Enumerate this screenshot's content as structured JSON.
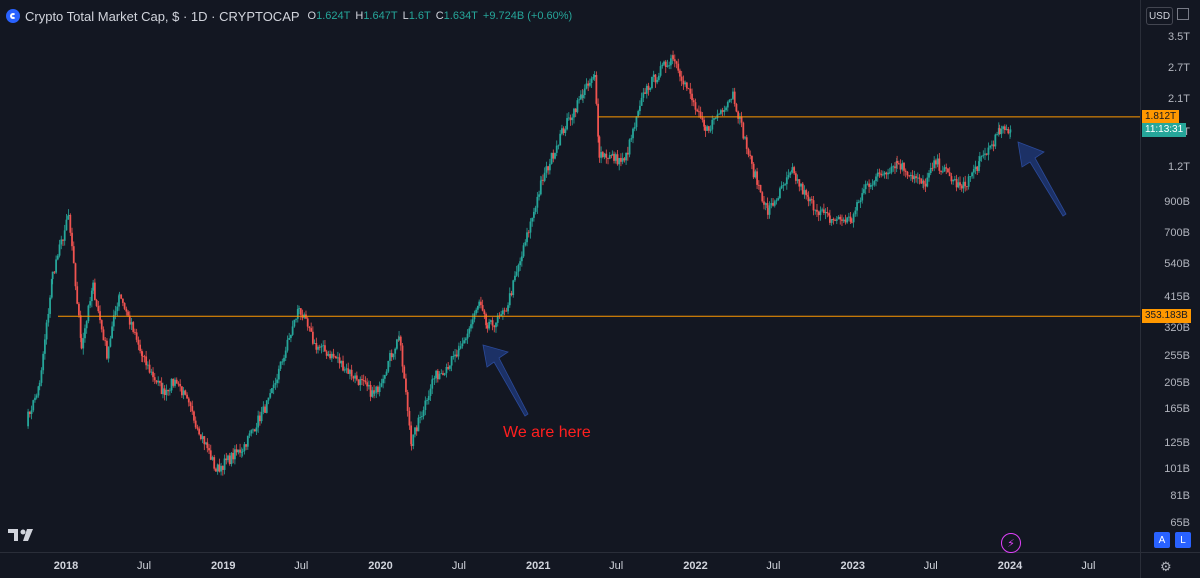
{
  "legend": {
    "symbol": "Crypto Total Market Cap, $ · 1D · CRYPTOCAP",
    "o_label": "O",
    "o_value": "1.624T",
    "h_label": "H",
    "h_value": "1.647T",
    "l_label": "L",
    "l_value": "1.6T",
    "c_label": "C",
    "c_value": "1.634T",
    "change": "+9.724B (+0.60%)"
  },
  "currency": "USD",
  "annotation": "We are here",
  "price_tags": {
    "upper_level": "1.812T",
    "countdown": "11:13:31",
    "lower_level": "353.183B"
  },
  "buttons": {
    "auto": "A",
    "log": "L"
  },
  "colors": {
    "up": "#26a69a",
    "down": "#ef5350",
    "level_line": "#ff9800",
    "arrow": "#1c3166",
    "annotation": "#ff1f1f",
    "background": "#131722"
  },
  "chart_data": {
    "type": "candlestick",
    "title": "Crypto Total Market Cap, $ · 1D · CRYPTOCAP",
    "scale": "log",
    "y_ticks": [
      "3.5T",
      "2.7T",
      "2.1T",
      "1.6T",
      "1.2T",
      "900B",
      "700B",
      "540B",
      "415B",
      "320B",
      "255B",
      "205B",
      "165B",
      "125B",
      "101B",
      "81B",
      "65B"
    ],
    "x_ticks": [
      "2018",
      "Jul",
      "2019",
      "Jul",
      "2020",
      "Jul",
      "2021",
      "Jul",
      "2022",
      "Jul",
      "2023",
      "Jul",
      "2024",
      "Jul"
    ],
    "ylim": [
      "62B",
      "4.2T"
    ],
    "horizontal_levels": [
      "1.812T",
      "353.183B"
    ],
    "series": [
      {
        "values": [
          [
            "2017-10-01",
            "150B"
          ],
          [
            "2017-11-01",
            "200B"
          ],
          [
            "2017-12-01",
            "500B"
          ],
          [
            "2018-01-07",
            "800B"
          ],
          [
            "2018-02-06",
            "280B"
          ],
          [
            "2018-03-05",
            "450B"
          ],
          [
            "2018-04-06",
            "260B"
          ],
          [
            "2018-05-05",
            "430B"
          ],
          [
            "2018-06-28",
            "250B"
          ],
          [
            "2018-08-14",
            "190B"
          ],
          [
            "2018-09-15",
            "210B"
          ],
          [
            "2018-11-25",
            "120B"
          ],
          [
            "2018-12-15",
            "100B"
          ],
          [
            "2019-02-15",
            "120B"
          ],
          [
            "2019-04-20",
            "180B"
          ],
          [
            "2019-06-26",
            "380B"
          ],
          [
            "2019-08-01",
            "280B"
          ],
          [
            "2019-09-20",
            "250B"
          ],
          [
            "2019-10-26",
            "220B"
          ],
          [
            "2019-12-18",
            "185B"
          ],
          [
            "2020-02-13",
            "300B"
          ],
          [
            "2020-03-13",
            "125B"
          ],
          [
            "2020-05-01",
            "210B"
          ],
          [
            "2020-07-01",
            "260B"
          ],
          [
            "2020-08-17",
            "390B"
          ],
          [
            "2020-09-05",
            "320B"
          ],
          [
            "2020-10-15",
            "360B"
          ],
          [
            "2020-11-24",
            "580B"
          ],
          [
            "2021-01-08",
            "1.05T"
          ],
          [
            "2021-02-21",
            "1.55T"
          ],
          [
            "2021-04-15",
            "2.2T"
          ],
          [
            "2021-05-12",
            "2.5T"
          ],
          [
            "2021-05-23",
            "1.35T"
          ],
          [
            "2021-06-22",
            "1.3T"
          ],
          [
            "2021-07-20",
            "1.25T"
          ],
          [
            "2021-09-06",
            "2.25T"
          ],
          [
            "2021-11-10",
            "3.0T"
          ],
          [
            "2022-01-24",
            "1.6T"
          ],
          [
            "2022-03-29",
            "2.2T"
          ],
          [
            "2022-05-12",
            "1.2T"
          ],
          [
            "2022-06-18",
            "830B"
          ],
          [
            "2022-08-14",
            "1.15T"
          ],
          [
            "2022-09-20",
            "910B"
          ],
          [
            "2022-11-09",
            "780B"
          ],
          [
            "2022-12-30",
            "780B"
          ],
          [
            "2023-01-31",
            "1.03T"
          ],
          [
            "2023-04-14",
            "1.25T"
          ],
          [
            "2023-06-15",
            "1.03T"
          ],
          [
            "2023-07-13",
            "1.25T"
          ],
          [
            "2023-09-11",
            "1.0T"
          ],
          [
            "2023-10-23",
            "1.25T"
          ],
          [
            "2023-12-08",
            "1.6T"
          ],
          [
            "2024-01-02",
            "1.634T"
          ]
        ]
      }
    ]
  }
}
